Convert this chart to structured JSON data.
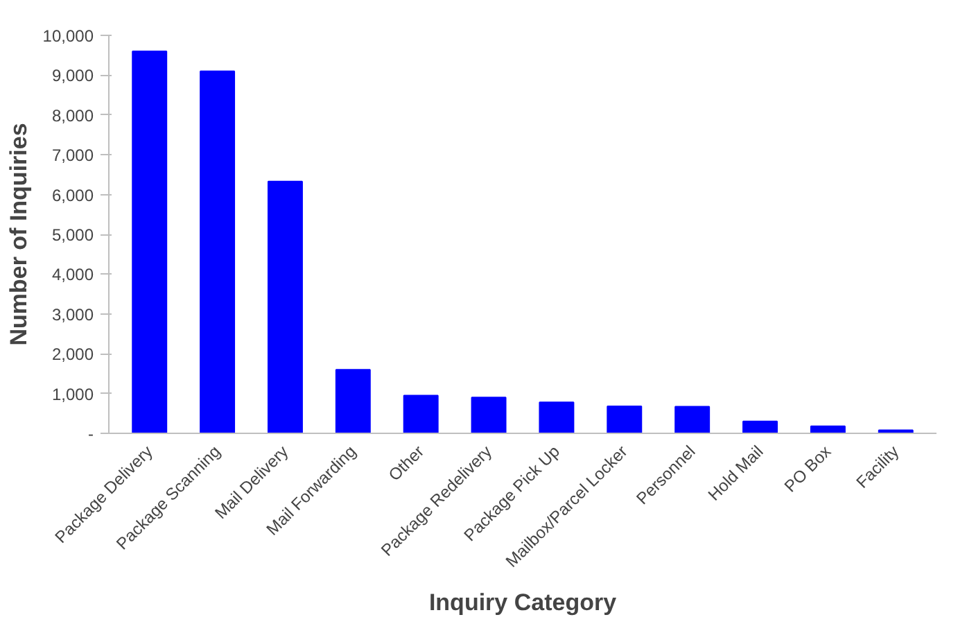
{
  "chart_data": {
    "type": "bar",
    "xlabel": "Inquiry Category",
    "ylabel": "Number of Inquiries",
    "categories": [
      "Package Delivery",
      "Package Scanning",
      "Mail Delivery",
      "Mail Forwarding",
      "Other",
      "Package Redelivery",
      "Package Pick Up",
      "Mailbox/Parcel Locker",
      "Personnel",
      "Hold Mail",
      "PO Box",
      "Facility"
    ],
    "values": [
      9600,
      9100,
      6330,
      1600,
      950,
      900,
      780,
      680,
      670,
      300,
      180,
      80
    ],
    "color": "#0000ff",
    "ylim": [
      0,
      10000
    ],
    "yticks": [
      {
        "value": 0,
        "label": "-"
      },
      {
        "value": 1000,
        "label": "1,000"
      },
      {
        "value": 2000,
        "label": "2,000"
      },
      {
        "value": 3000,
        "label": "3,000"
      },
      {
        "value": 4000,
        "label": "4,000"
      },
      {
        "value": 5000,
        "label": "5,000"
      },
      {
        "value": 6000,
        "label": "6,000"
      },
      {
        "value": 7000,
        "label": "7,000"
      },
      {
        "value": 8000,
        "label": "8,000"
      },
      {
        "value": 9000,
        "label": "9,000"
      },
      {
        "value": 10000,
        "label": "10,000"
      }
    ],
    "grid": false
  }
}
